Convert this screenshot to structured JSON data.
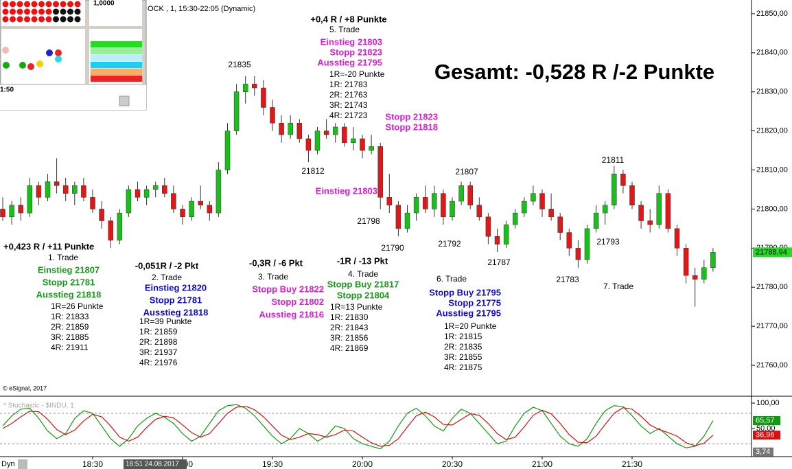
{
  "chart_data": [
    {
      "type": "candlestick",
      "title": "OCK , 1, 15:30-22:05 (Dynamic)",
      "summary": "Gesamt: -0,528 R /-2 Punkte",
      "copyright": "© eSignal, 2017",
      "crosshair_label": "18:51 24.08.2017",
      "mode_label": "Dyn",
      "up_color": "#19c019",
      "down_color": "#e01818",
      "categories": [
        null,
        null,
        null,
        null,
        null,
        null,
        null,
        null,
        null,
        null,
        "18:30",
        null,
        null,
        null,
        null,
        null,
        null,
        null,
        null,
        null,
        "19:00",
        null,
        null,
        null,
        null,
        null,
        null,
        null,
        null,
        null,
        "19:30",
        null,
        null,
        null,
        null,
        null,
        null,
        null,
        null,
        null,
        "20:00",
        null,
        null,
        null,
        null,
        null,
        null,
        null,
        null,
        null,
        "20:30",
        null,
        null,
        null,
        null,
        null,
        null,
        null,
        null,
        null,
        "21:00",
        null,
        null,
        null,
        null,
        null,
        null,
        null,
        null,
        null,
        "21:30",
        null,
        null,
        null,
        null,
        null,
        null,
        null,
        null,
        null
      ],
      "open": [
        21800,
        21798,
        21801,
        21799,
        21806,
        21803,
        21807,
        21806,
        21804,
        21806,
        21803,
        21800,
        21797,
        21792,
        21799,
        21805,
        21803,
        21805,
        21806,
        21804,
        21800,
        21798,
        21802,
        21801,
        21799,
        21810,
        21820,
        21830,
        21832,
        21831,
        21826,
        21822,
        21819,
        21822,
        21818,
        21815,
        21820,
        21819,
        21821,
        21817,
        21818,
        21815,
        21816,
        21803,
        21801,
        21795,
        21799,
        21803,
        21800,
        21804,
        21798,
        21802,
        21806,
        21801,
        21798,
        21793,
        21791,
        21796,
        21799,
        21802,
        21804,
        21800,
        21798,
        21794,
        21790,
        21787,
        21795,
        21799,
        21801,
        21809,
        21806,
        21801,
        21797,
        21796,
        21804,
        21795,
        21790,
        21783,
        21782,
        21785
      ],
      "high": [
        21803,
        21802,
        21803,
        21808,
        21807,
        21809,
        21813,
        21808,
        21807,
        21808,
        21805,
        21802,
        21798,
        21800,
        21806,
        21807,
        21806,
        21807,
        21808,
        21806,
        21801,
        21803,
        21806,
        21802,
        21812,
        21822,
        21832,
        21834,
        21834,
        21833,
        21828,
        21824,
        21824,
        21823,
        21819,
        21821,
        21823,
        21822,
        21822,
        21821,
        21819,
        21819,
        21817,
        21809,
        21802,
        21801,
        21804,
        21806,
        21806,
        21805,
        21803,
        21807,
        21807,
        21803,
        21799,
        21795,
        21797,
        21800,
        21803,
        21806,
        21805,
        21804,
        21799,
        21795,
        21792,
        21796,
        21801,
        21802,
        21811,
        21810,
        21807,
        21802,
        21800,
        21806,
        21805,
        21796,
        21791,
        21785,
        21787,
        21790
      ],
      "low": [
        21797,
        21796,
        21797,
        21798,
        21801,
        21802,
        21804,
        21802,
        21801,
        21802,
        21799,
        21795,
        21790,
        21791,
        21798,
        21802,
        21801,
        21803,
        21803,
        21799,
        21796,
        21797,
        21800,
        21797,
        21798,
        21809,
        21819,
        21827,
        21829,
        21824,
        21820,
        21817,
        21818,
        21817,
        21812,
        21814,
        21818,
        21817,
        21816,
        21815,
        21813,
        21814,
        21800,
        21799,
        21793,
        21794,
        21797,
        21799,
        21798,
        21796,
        21797,
        21801,
        21800,
        21797,
        21791,
        21789,
        21790,
        21795,
        21798,
        21801,
        21798,
        21797,
        21792,
        21788,
        21785,
        21786,
        21794,
        21796,
        21800,
        21804,
        21800,
        21795,
        21794,
        21795,
        21794,
        21788,
        21781,
        21775,
        21781,
        21784
      ],
      "close": [
        21798,
        21801,
        21799,
        21806,
        21803,
        21807,
        21806,
        21804,
        21806,
        21803,
        21800,
        21797,
        21792,
        21799,
        21805,
        21803,
        21805,
        21806,
        21804,
        21800,
        21798,
        21802,
        21801,
        21799,
        21810,
        21820,
        21830,
        21832,
        21831,
        21826,
        21822,
        21819,
        21822,
        21818,
        21815,
        21820,
        21819,
        21821,
        21817,
        21818,
        21815,
        21816,
        21803,
        21801,
        21795,
        21799,
        21803,
        21800,
        21804,
        21798,
        21802,
        21806,
        21801,
        21798,
        21793,
        21791,
        21796,
        21799,
        21802,
        21804,
        21800,
        21798,
        21794,
        21790,
        21787,
        21795,
        21799,
        21801,
        21809,
        21806,
        21801,
        21797,
        21796,
        21804,
        21795,
        21790,
        21783,
        21782,
        21785,
        21788.94
      ],
      "close_label": "21788,94",
      "ylim": [
        21752.1,
        21853.5
      ],
      "yticks": [
        {
          "value": 21850,
          "label": "21850,00"
        },
        {
          "value": 21840,
          "label": "21840,00"
        },
        {
          "value": 21830,
          "label": "21830,00"
        },
        {
          "value": 21820,
          "label": "21820,00"
        },
        {
          "value": 21810,
          "label": "21810,00"
        },
        {
          "value": 21800,
          "label": "21800,00"
        },
        {
          "value": 21790,
          "label": "21790,00"
        },
        {
          "value": 21780,
          "label": "21780,00"
        },
        {
          "value": 21770,
          "label": "21770,00"
        },
        {
          "value": 21760,
          "label": "21760,00"
        }
      ],
      "annotations": [
        "21835",
        "21812",
        "21798",
        "21790",
        "21792",
        "21807",
        "21787",
        "21783",
        "21811",
        "21793"
      ],
      "trades": [
        {
          "result": "+0,423 R / +11 Punkte",
          "name": "1. Trade",
          "color": "#1a9a1a",
          "lines": [
            "Einstieg 21807",
            "Stopp 21781",
            "Ausstieg 21818"
          ],
          "targets": [
            "1R=26 Punkte",
            "1R: 21833",
            "2R: 21859",
            "3R: 21885",
            "4R: 21911"
          ]
        },
        {
          "result": "-0,051R / -2 Pkt",
          "name": "2. Trade",
          "color": "#0a0ad0",
          "lines": [
            "Einstieg 21820",
            "Stopp 21781",
            "Ausstieg 21818"
          ],
          "targets": [
            "1R=39 Punkte",
            "1R: 21859",
            "2R: 21898",
            "3R: 21937",
            "4R: 21976"
          ]
        },
        {
          "result": "-0,3R / -6 Pkt",
          "name": "3. Trade",
          "color": "#e21ad8",
          "lines": [
            "Stopp Buy 21822",
            "Stopp 21802",
            "Ausstieg 21816"
          ]
        },
        {
          "result": "-1R / -13 Pkt",
          "name": "4. Trade",
          "color": "#1a9a1a",
          "lines": [
            "Stopp Buy 21817",
            "Stopp 21804"
          ],
          "targets": [
            "1R=13 Punkte",
            "1R: 21830",
            "2R: 21843",
            "3R: 21856",
            "4R: 21869"
          ]
        },
        {
          "result": "+0,4 R / +8 Punkte",
          "name": "5. Trade",
          "color": "#e21ad8",
          "lines": [
            "Einstieg 21803",
            "Stopp 21823",
            "Ausstieg 21795"
          ],
          "targets": [
            "1R=-20 Punkte",
            "1R: 21783",
            "2R: 21763",
            "3R: 21743",
            "4R: 21723"
          ]
        },
        {
          "name": "6. Trade",
          "color": "#0a0ad0",
          "lines": [
            "Stopp Buy 21795",
            "Stopp 21775",
            "Ausstieg 21795"
          ],
          "targets": [
            "1R=20 Punkte",
            "1R: 21815",
            "2R: 21835",
            "3R: 21855",
            "4R: 21875"
          ]
        },
        {
          "name": "7. Trade"
        }
      ],
      "notes": [
        {
          "text": "Stopp 21823",
          "color": "#e21ad8"
        },
        {
          "text": "Stopp 21818",
          "color": "#e21ad8"
        },
        {
          "text": "Einstieg 21803",
          "color": "#e21ad8"
        }
      ],
      "widget_texts": [
        "1,0000",
        "1:50"
      ]
    },
    {
      "type": "line",
      "title": "* Stochastic - $INDU, 1",
      "series": [
        {
          "color": "#109a10",
          "value_label": "65,57",
          "values": [
            55,
            75,
            88,
            90,
            70,
            45,
            30,
            40,
            70,
            85,
            80,
            55,
            30,
            15,
            30,
            55,
            70,
            80,
            72,
            60,
            40,
            25,
            35,
            60,
            85,
            95,
            97,
            90,
            75,
            55,
            35,
            20,
            30,
            50,
            40,
            25,
            35,
            55,
            50,
            30,
            20,
            15,
            10,
            25,
            55,
            80,
            90,
            75,
            55,
            45,
            70,
            88,
            80,
            60,
            40,
            20,
            25,
            55,
            80,
            92,
            85,
            60,
            35,
            20,
            15,
            30,
            60,
            85,
            95,
            93,
            75,
            55,
            40,
            50,
            35,
            20,
            12,
            15,
            35,
            65.57
          ]
        },
        {
          "color": "#d81010",
          "value_label": "36,96",
          "values": [
            50,
            60,
            73,
            84,
            83,
            68,
            48,
            38,
            47,
            65,
            78,
            73,
            55,
            33,
            25,
            33,
            52,
            68,
            74,
            71,
            57,
            42,
            33,
            40,
            60,
            80,
            92,
            94,
            87,
            73,
            55,
            37,
            28,
            33,
            40,
            38,
            33,
            38,
            47,
            45,
            33,
            22,
            15,
            17,
            30,
            53,
            75,
            82,
            73,
            58,
            57,
            68,
            79,
            76,
            60,
            40,
            28,
            33,
            53,
            76,
            86,
            79,
            60,
            38,
            23,
            22,
            35,
            58,
            80,
            91,
            88,
            74,
            57,
            48,
            42,
            35,
            22,
            16,
            21,
            36.96
          ]
        }
      ],
      "extra_value": {
        "value": 3.74,
        "label": "3,74"
      },
      "levels": [
        80,
        20
      ],
      "ylim": [
        -5.4,
        112.2
      ],
      "yticks": [
        {
          "value": 100,
          "label": "100,00"
        },
        {
          "value": 50,
          "label": "50,00"
        }
      ]
    }
  ]
}
